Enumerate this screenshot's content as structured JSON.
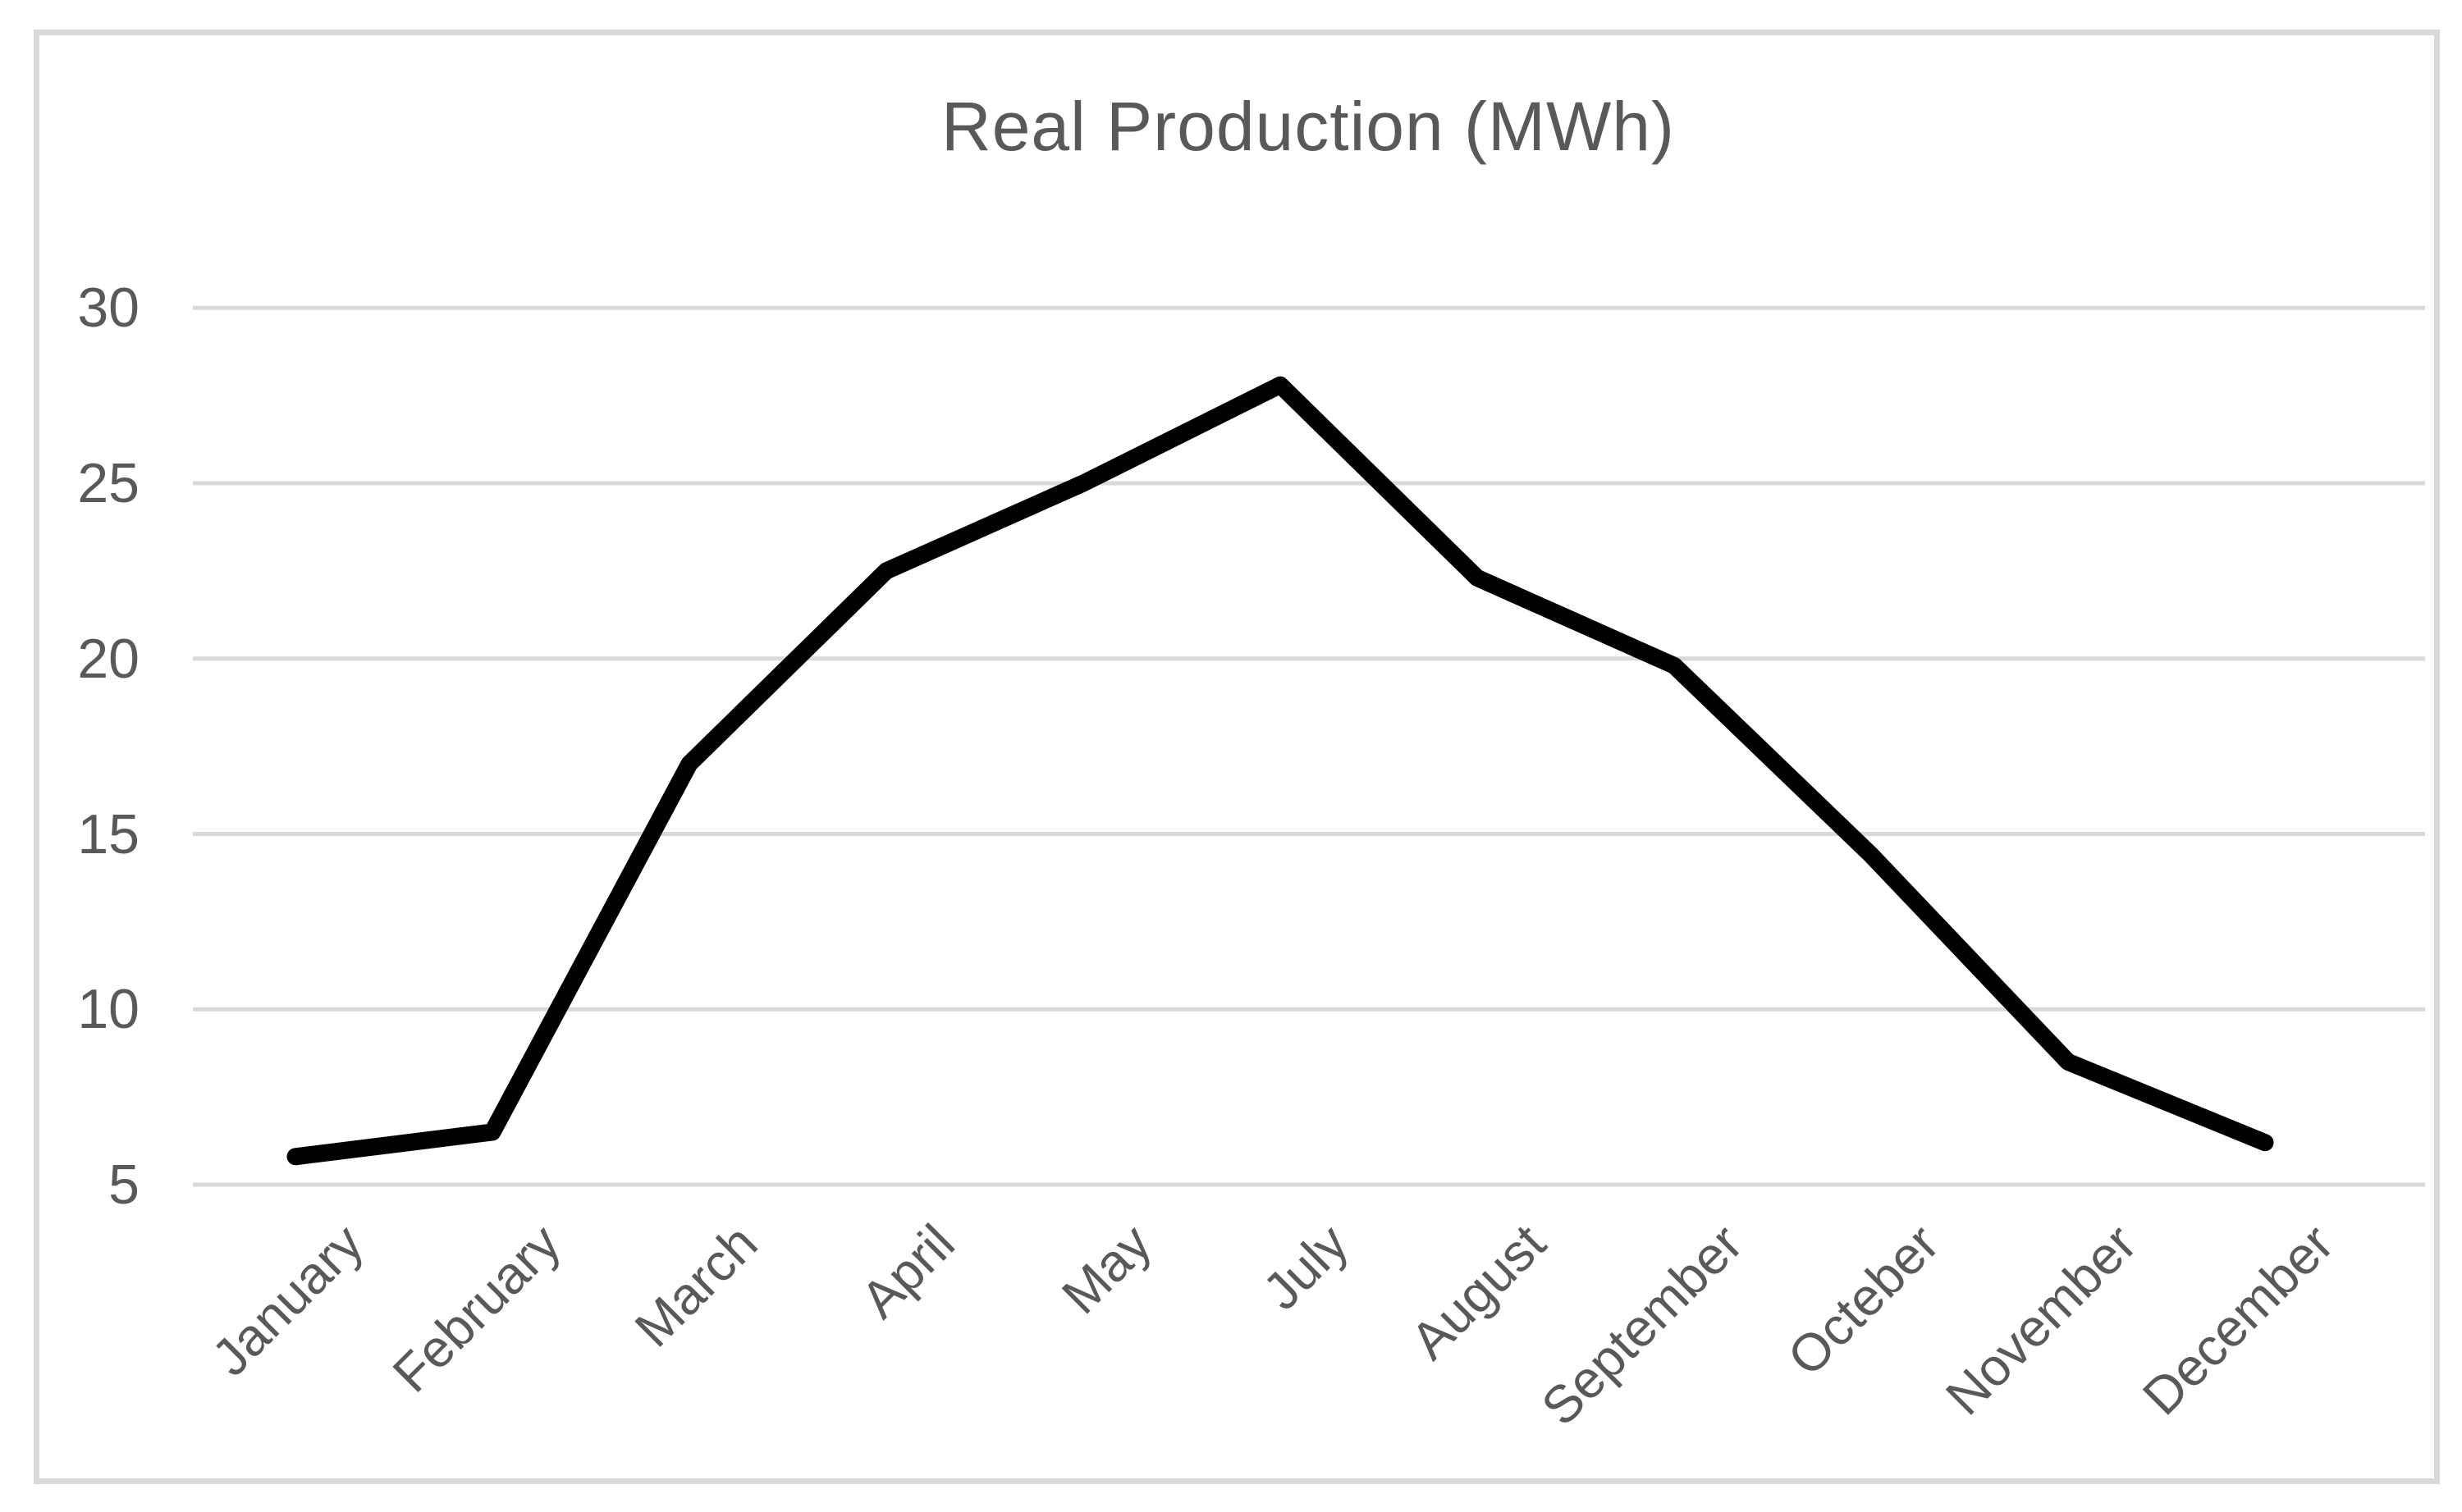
{
  "chart_data": {
    "type": "line",
    "title": "Real Production (MWh)",
    "categories": [
      "January",
      "February",
      "March",
      "April",
      "May",
      "July",
      "August",
      "September",
      "Octeber",
      "November",
      "December"
    ],
    "series": [
      {
        "name": "Real Production (MWh)",
        "values": [
          5.8,
          6.5,
          17.0,
          22.5,
          25.0,
          27.8,
          22.3,
          19.8,
          14.4,
          8.5,
          6.2
        ]
      }
    ],
    "xlabel": "",
    "ylabel": "",
    "y_ticks": [
      5,
      10,
      15,
      20,
      25,
      30
    ],
    "ylim": [
      5,
      30
    ],
    "grid": "horizontal",
    "legend": "none",
    "colors": {
      "line": "#000000",
      "grid": "#D9D9D9",
      "text": "#595959",
      "frame": "#D9D9D9"
    }
  }
}
